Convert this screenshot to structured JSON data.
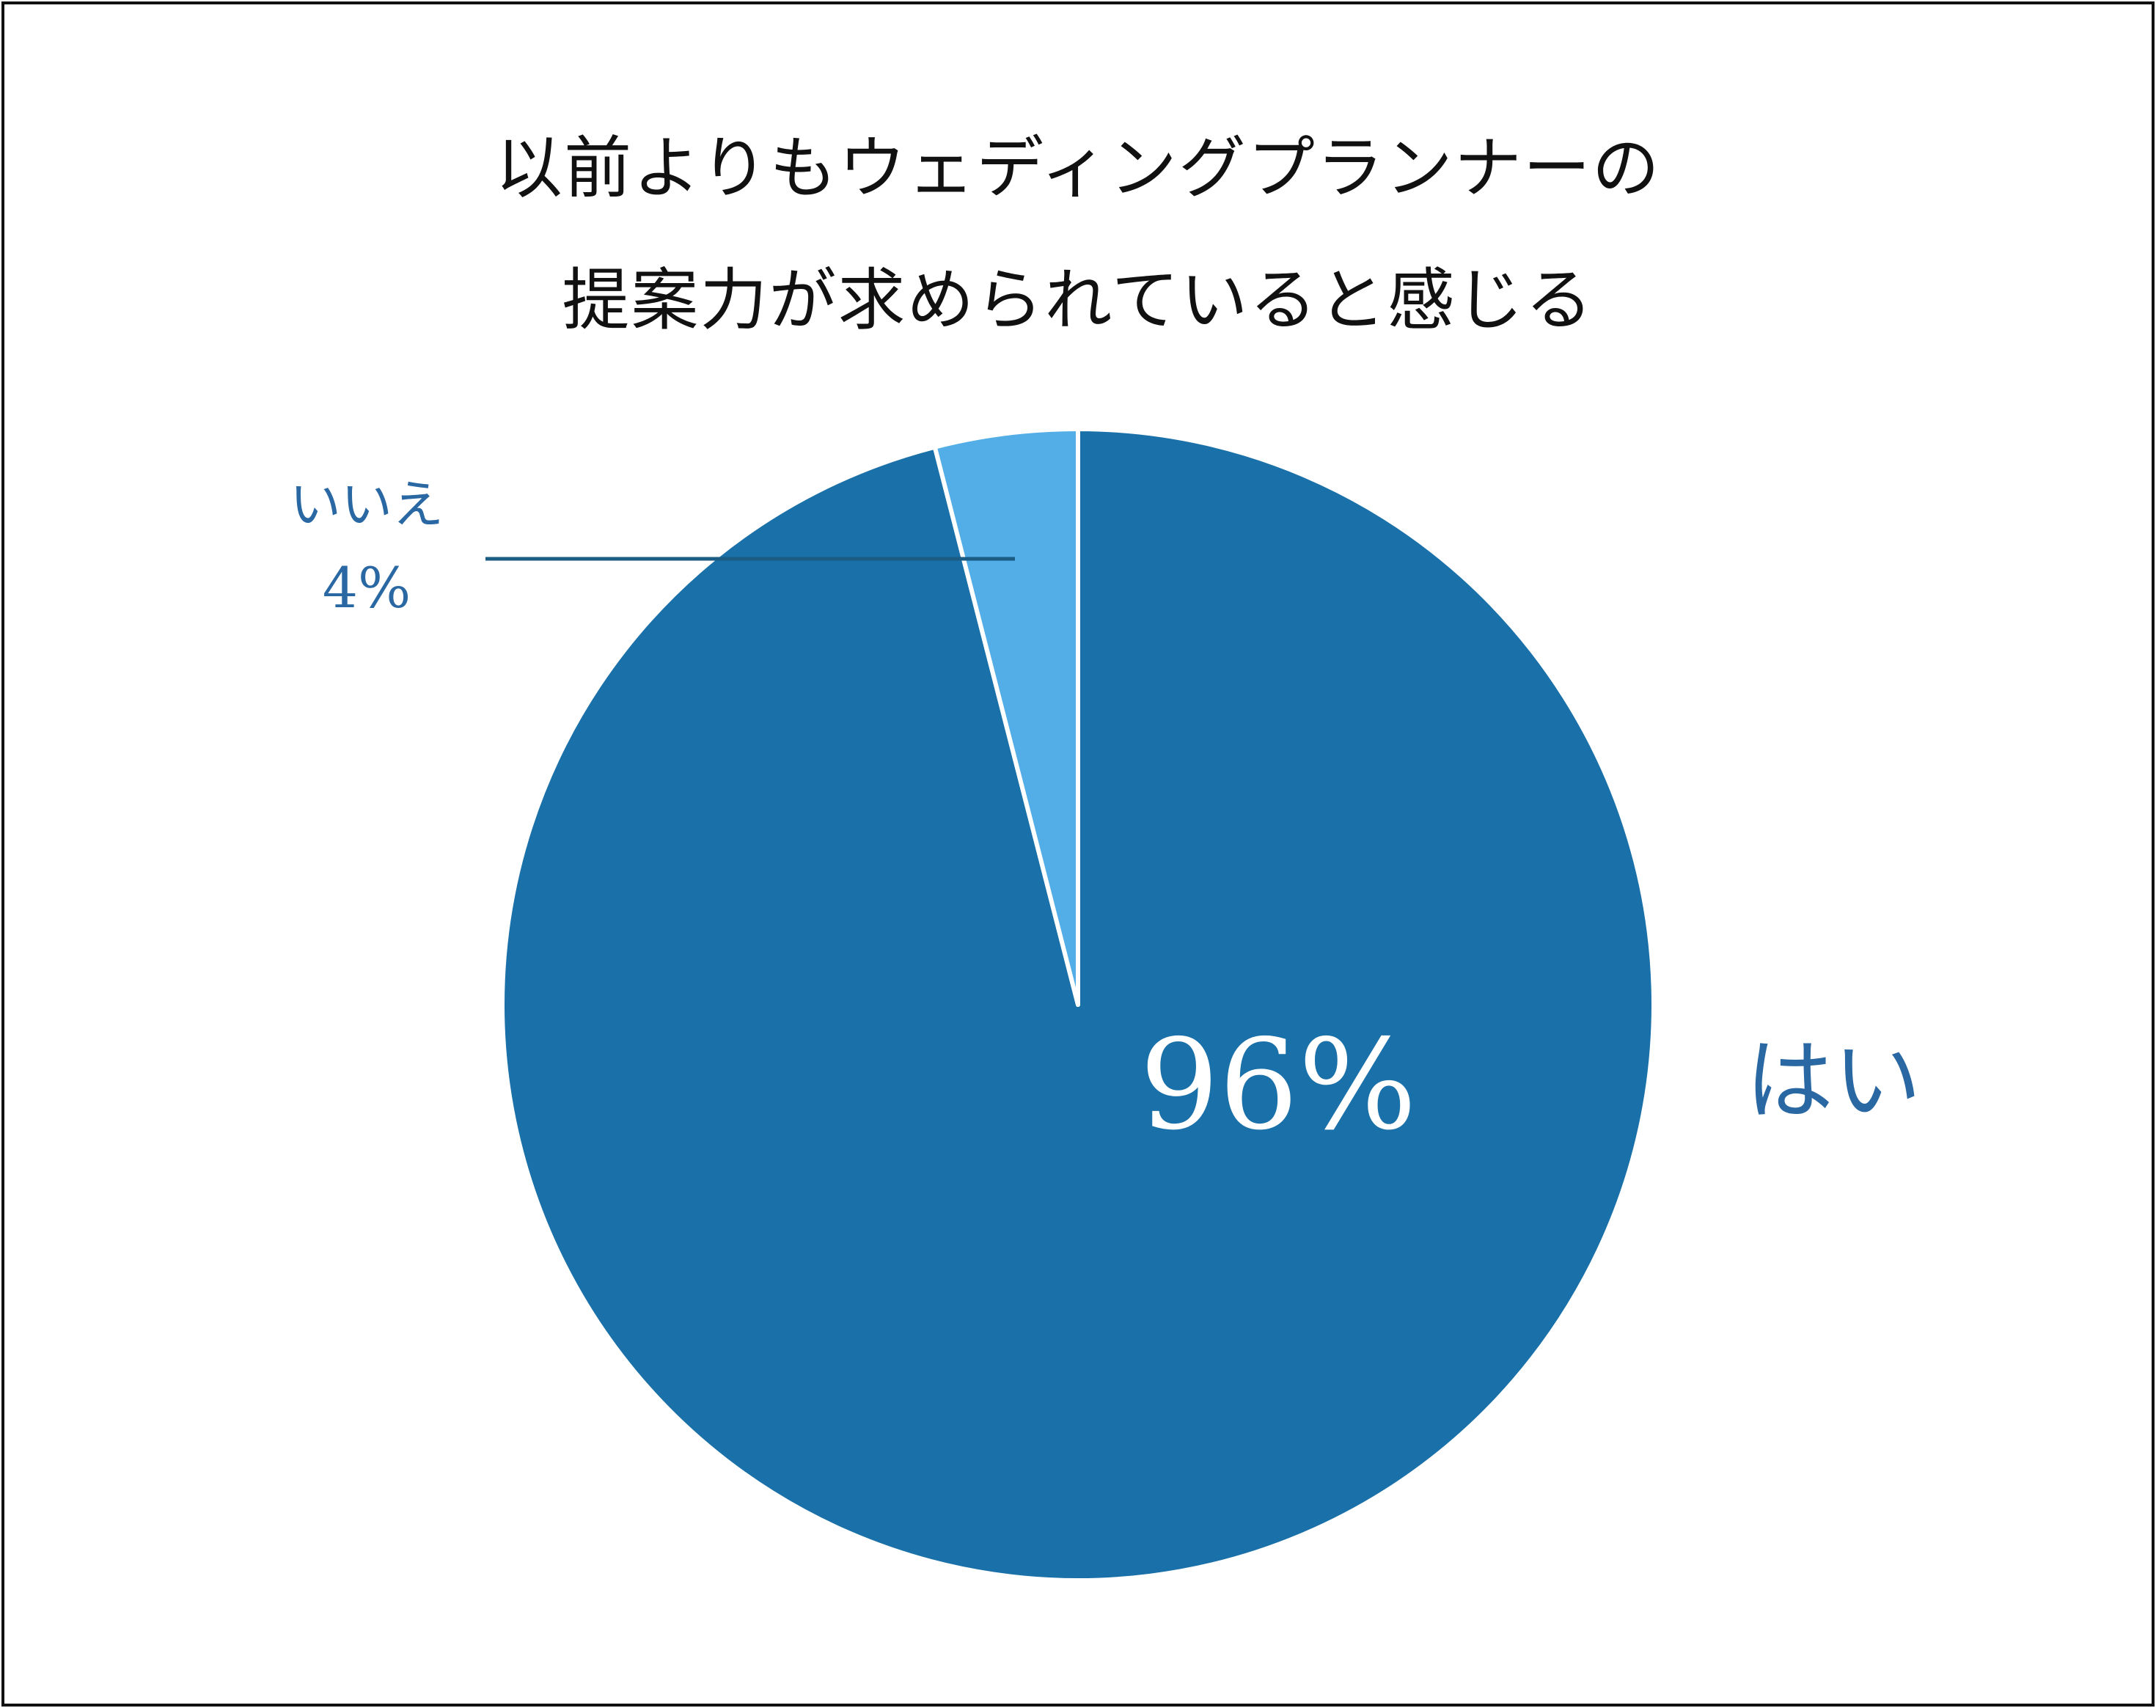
{
  "title_lines": [
    "以前よりもウェディングプランナーの",
    "提案力が求められていると感じる"
  ],
  "colors": {
    "yes": "#1a70a8",
    "no": "#53ade6",
    "label_text": "#2a68a3",
    "leader_line": "#1a5c84",
    "slice_border": "#ffffff",
    "frame": "#111111"
  },
  "chart_data": {
    "type": "pie",
    "title": "以前よりもウェディングプランナーの提案力が求められていると感じる",
    "start_angle": "12 o'clock",
    "direction": "clockwise",
    "slices": [
      {
        "label": "はい",
        "value": 96,
        "value_label": "96%",
        "color": "#1a70a8"
      },
      {
        "label": "いいえ",
        "value": 4,
        "value_label": "4%",
        "color": "#53ade6"
      }
    ]
  }
}
